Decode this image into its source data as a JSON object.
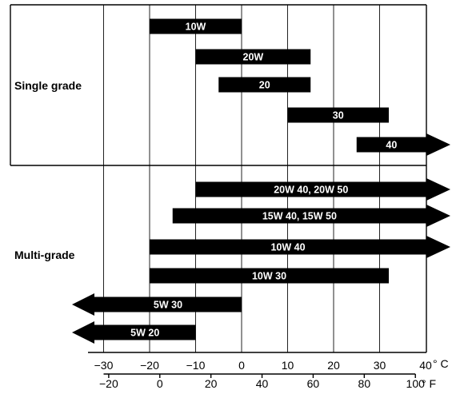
{
  "chart_data": {
    "type": "range-bar",
    "title": "",
    "groups": [
      {
        "label": "Single grade",
        "bars": [
          {
            "label": "10W",
            "from_c": -20,
            "to_c": 0,
            "arrow": "none"
          },
          {
            "label": "20W",
            "from_c": -10,
            "to_c": 15,
            "arrow": "none"
          },
          {
            "label": "20",
            "from_c": -5,
            "to_c": 15,
            "arrow": "none"
          },
          {
            "label": "30",
            "from_c": 10,
            "to_c": 32,
            "arrow": "none"
          },
          {
            "label": "40",
            "from_c": 25,
            "to_c": 40,
            "arrow": "right"
          }
        ]
      },
      {
        "label": "Multi-grade",
        "bars": [
          {
            "label": "20W  40, 20W  50",
            "from_c": -10,
            "to_c": 40,
            "arrow": "right"
          },
          {
            "label": "15W  40, 15W  50",
            "from_c": -15,
            "to_c": 40,
            "arrow": "right"
          },
          {
            "label": "10W  40",
            "from_c": -20,
            "to_c": 40,
            "arrow": "right"
          },
          {
            "label": "10W  30",
            "from_c": -20,
            "to_c": 32,
            "arrow": "none"
          },
          {
            "label": "5W  30",
            "from_c": -35,
            "to_c": 0,
            "arrow": "left"
          },
          {
            "label": "5W  20",
            "from_c": -35,
            "to_c": -10,
            "arrow": "left"
          }
        ]
      }
    ],
    "x_celsius": {
      "range": [
        -40,
        40
      ],
      "ticks": [
        -30,
        -20,
        -10,
        0,
        10,
        20,
        30,
        40
      ],
      "tick_labels": [
        "−30",
        "−20",
        "−10",
        "0",
        "10",
        "20",
        "30",
        "40"
      ],
      "unit": "° C"
    },
    "x_fahrenheit": {
      "ticks": [
        -20,
        0,
        20,
        40,
        60,
        80,
        100
      ],
      "tick_labels": [
        "−20",
        "0",
        "20",
        "40",
        "60",
        "80",
        "100"
      ],
      "unit": "° F"
    },
    "grid": true,
    "colors": {
      "bar": "#000000",
      "bar_text": "#ffffff",
      "grid": "#222222"
    }
  }
}
